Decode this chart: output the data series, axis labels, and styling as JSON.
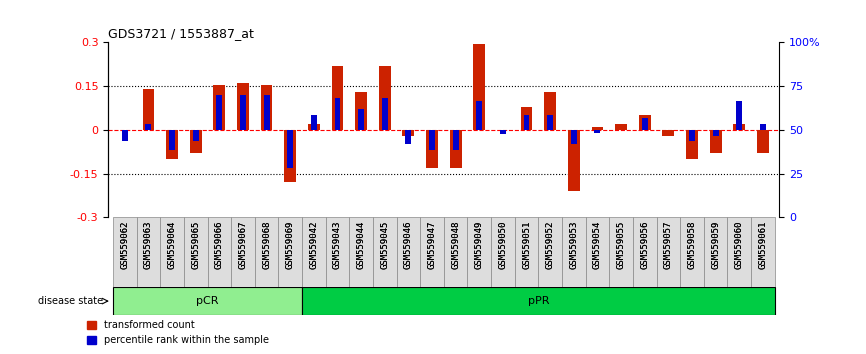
{
  "title": "GDS3721 / 1553887_at",
  "samples": [
    "GSM559062",
    "GSM559063",
    "GSM559064",
    "GSM559065",
    "GSM559066",
    "GSM559067",
    "GSM559068",
    "GSM559069",
    "GSM559042",
    "GSM559043",
    "GSM559044",
    "GSM559045",
    "GSM559046",
    "GSM559047",
    "GSM559048",
    "GSM559049",
    "GSM559050",
    "GSM559051",
    "GSM559052",
    "GSM559053",
    "GSM559054",
    "GSM559055",
    "GSM559056",
    "GSM559057",
    "GSM559058",
    "GSM559059",
    "GSM559060",
    "GSM559061"
  ],
  "red_values": [
    0.0,
    0.14,
    -0.1,
    -0.08,
    0.155,
    0.16,
    0.155,
    -0.18,
    0.02,
    0.22,
    0.13,
    0.22,
    -0.02,
    -0.13,
    -0.13,
    0.295,
    0.0,
    0.08,
    0.13,
    -0.21,
    0.01,
    0.02,
    0.05,
    -0.02,
    -0.1,
    -0.08,
    0.02,
    -0.08
  ],
  "blue_values": [
    -0.038,
    0.02,
    -0.07,
    -0.04,
    0.12,
    0.12,
    0.12,
    -0.13,
    0.05,
    0.11,
    0.07,
    0.11,
    -0.05,
    -0.07,
    -0.07,
    0.1,
    -0.015,
    0.05,
    0.05,
    -0.05,
    -0.01,
    0.0,
    0.04,
    0.0,
    -0.04,
    -0.02,
    0.1,
    0.02
  ],
  "group_labels": [
    "pCR",
    "pPR"
  ],
  "group_ranges": [
    0,
    8,
    28
  ],
  "group_colors": [
    "#90EE90",
    "#00CC44"
  ],
  "ylim": [
    -0.3,
    0.3
  ],
  "yticks": [
    -0.3,
    -0.15,
    0.0,
    0.15,
    0.3
  ],
  "ytick_labels": [
    "-0.3",
    "-0.15",
    "0",
    "0.15",
    "0.3"
  ],
  "right_yticks": [
    0,
    25,
    50,
    75,
    100
  ],
  "right_ytick_labels": [
    "0",
    "25",
    "50",
    "75",
    "100%"
  ],
  "hline_y": [
    -0.15,
    0.0,
    0.15
  ],
  "red_color": "#CC2200",
  "blue_color": "#0000CC",
  "bar_width": 0.5,
  "legend_red": "transformed count",
  "legend_blue": "percentile rank within the sample"
}
